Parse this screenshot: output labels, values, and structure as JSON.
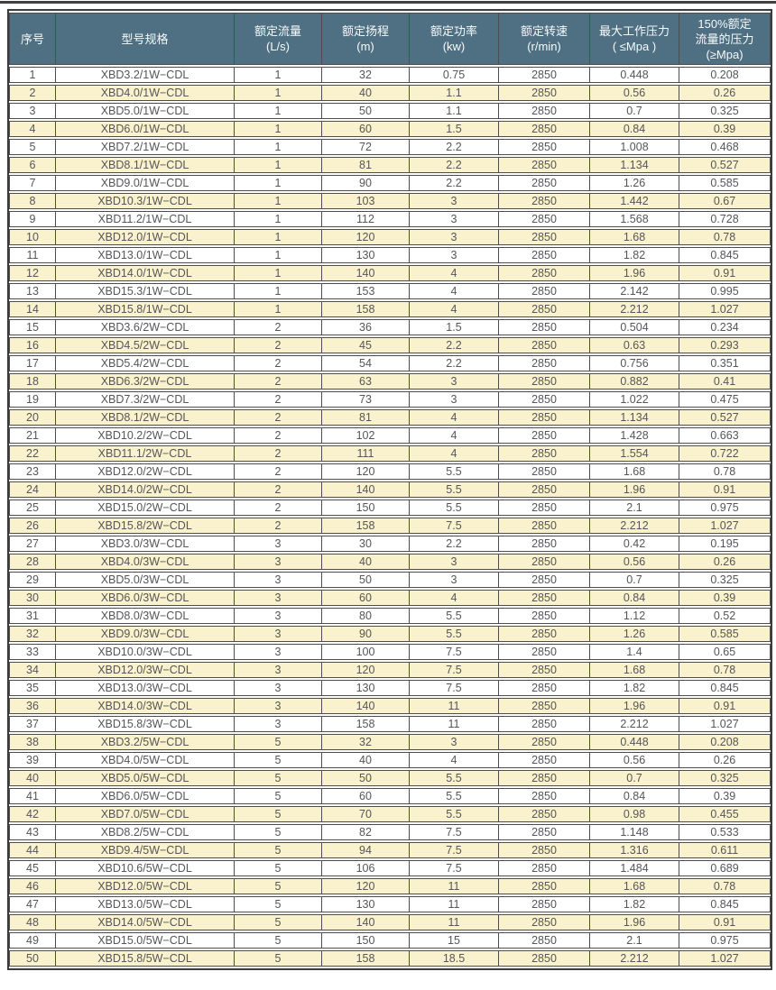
{
  "colors": {
    "header_bg": "#4e7082",
    "header_text": "#f7fafc",
    "row_alt_bg": "#f9f2cc",
    "row_bg": "#ffffff",
    "border": "#4d4d4f",
    "text": "#55555a",
    "top_rule": "#404042"
  },
  "table": {
    "columns": [
      {
        "title": "序号",
        "title2": "",
        "unit": ""
      },
      {
        "title": "型号规格",
        "title2": "",
        "unit": ""
      },
      {
        "title": "额定流量",
        "title2": "",
        "unit": "(L/s)"
      },
      {
        "title": "额定扬程",
        "title2": "",
        "unit": "(m)"
      },
      {
        "title": "额定功率",
        "title2": "",
        "unit": "(kw)"
      },
      {
        "title": "额定转速",
        "title2": "",
        "unit": "(r/min)"
      },
      {
        "title": "最大工作压力",
        "title2": "",
        "unit": "( ≤Mpa )"
      },
      {
        "title": "150%额定",
        "title2": "流量的压力",
        "unit": "(≥Mpa)"
      }
    ],
    "rows": [
      [
        "1",
        "XBD3.2/1W−CDL",
        "1",
        "32",
        "0.75",
        "2850",
        "0.448",
        "0.208"
      ],
      [
        "2",
        "XBD4.0/1W−CDL",
        "1",
        "40",
        "1.1",
        "2850",
        "0.56",
        "0.26"
      ],
      [
        "3",
        "XBD5.0/1W−CDL",
        "1",
        "50",
        "1.1",
        "2850",
        "0.7",
        "0.325"
      ],
      [
        "4",
        "XBD6.0/1W−CDL",
        "1",
        "60",
        "1.5",
        "2850",
        "0.84",
        "0.39"
      ],
      [
        "5",
        "XBD7.2/1W−CDL",
        "1",
        "72",
        "2.2",
        "2850",
        "1.008",
        "0.468"
      ],
      [
        "6",
        "XBD8.1/1W−CDL",
        "1",
        "81",
        "2.2",
        "2850",
        "1.134",
        "0.527"
      ],
      [
        "7",
        "XBD9.0/1W−CDL",
        "1",
        "90",
        "2.2",
        "2850",
        "1.26",
        "0.585"
      ],
      [
        "8",
        "XBD10.3/1W−CDL",
        "1",
        "103",
        "3",
        "2850",
        "1.442",
        "0.67"
      ],
      [
        "9",
        "XBD11.2/1W−CDL",
        "1",
        "112",
        "3",
        "2850",
        "1.568",
        "0.728"
      ],
      [
        "10",
        "XBD12.0/1W−CDL",
        "1",
        "120",
        "3",
        "2850",
        "1.68",
        "0.78"
      ],
      [
        "11",
        "XBD13.0/1W−CDL",
        "1",
        "130",
        "3",
        "2850",
        "1.82",
        "0.845"
      ],
      [
        "12",
        "XBD14.0/1W−CDL",
        "1",
        "140",
        "4",
        "2850",
        "1.96",
        "0.91"
      ],
      [
        "13",
        "XBD15.3/1W−CDL",
        "1",
        "153",
        "4",
        "2850",
        "2.142",
        "0.995"
      ],
      [
        "14",
        "XBD15.8/1W−CDL",
        "1",
        "158",
        "4",
        "2850",
        "2.212",
        "1.027"
      ],
      [
        "15",
        "XBD3.6/2W−CDL",
        "2",
        "36",
        "1.5",
        "2850",
        "0.504",
        "0.234"
      ],
      [
        "16",
        "XBD4.5/2W−CDL",
        "2",
        "45",
        "2.2",
        "2850",
        "0.63",
        "0.293"
      ],
      [
        "17",
        "XBD5.4/2W−CDL",
        "2",
        "54",
        "2.2",
        "2850",
        "0.756",
        "0.351"
      ],
      [
        "18",
        "XBD6.3/2W−CDL",
        "2",
        "63",
        "3",
        "2850",
        "0.882",
        "0.41"
      ],
      [
        "19",
        "XBD7.3/2W−CDL",
        "2",
        "73",
        "3",
        "2850",
        "1.022",
        "0.475"
      ],
      [
        "20",
        "XBD8.1/2W−CDL",
        "2",
        "81",
        "4",
        "2850",
        "1.134",
        "0.527"
      ],
      [
        "21",
        "XBD10.2/2W−CDL",
        "2",
        "102",
        "4",
        "2850",
        "1.428",
        "0.663"
      ],
      [
        "22",
        "XBD11.1/2W−CDL",
        "2",
        "111",
        "4",
        "2850",
        "1.554",
        "0.722"
      ],
      [
        "23",
        "XBD12.0/2W−CDL",
        "2",
        "120",
        "5.5",
        "2850",
        "1.68",
        "0.78"
      ],
      [
        "24",
        "XBD14.0/2W−CDL",
        "2",
        "140",
        "5.5",
        "2850",
        "1.96",
        "0.91"
      ],
      [
        "25",
        "XBD15.0/2W−CDL",
        "2",
        "150",
        "5.5",
        "2850",
        "2.1",
        "0.975"
      ],
      [
        "26",
        "XBD15.8/2W−CDL",
        "2",
        "158",
        "7.5",
        "2850",
        "2.212",
        "1.027"
      ],
      [
        "27",
        "XBD3.0/3W−CDL",
        "3",
        "30",
        "2.2",
        "2850",
        "0.42",
        "0.195"
      ],
      [
        "28",
        "XBD4.0/3W−CDL",
        "3",
        "40",
        "3",
        "2850",
        "0.56",
        "0.26"
      ],
      [
        "29",
        "XBD5.0/3W−CDL",
        "3",
        "50",
        "3",
        "2850",
        "0.7",
        "0.325"
      ],
      [
        "30",
        "XBD6.0/3W−CDL",
        "3",
        "60",
        "4",
        "2850",
        "0.84",
        "0.39"
      ],
      [
        "31",
        "XBD8.0/3W−CDL",
        "3",
        "80",
        "5.5",
        "2850",
        "1.12",
        "0.52"
      ],
      [
        "32",
        "XBD9.0/3W−CDL",
        "3",
        "90",
        "5.5",
        "2850",
        "1.26",
        "0.585"
      ],
      [
        "33",
        "XBD10.0/3W−CDL",
        "3",
        "100",
        "7.5",
        "2850",
        "1.4",
        "0.65"
      ],
      [
        "34",
        "XBD12.0/3W−CDL",
        "3",
        "120",
        "7.5",
        "2850",
        "1.68",
        "0.78"
      ],
      [
        "35",
        "XBD13.0/3W−CDL",
        "3",
        "130",
        "7.5",
        "2850",
        "1.82",
        "0.845"
      ],
      [
        "36",
        "XBD14.0/3W−CDL",
        "3",
        "140",
        "11",
        "2850",
        "1.96",
        "0.91"
      ],
      [
        "37",
        "XBD15.8/3W−CDL",
        "3",
        "158",
        "11",
        "2850",
        "2.212",
        "1.027"
      ],
      [
        "38",
        "XBD3.2/5W−CDL",
        "5",
        "32",
        "3",
        "2850",
        "0.448",
        "0.208"
      ],
      [
        "39",
        "XBD4.0/5W−CDL",
        "5",
        "40",
        "4",
        "2850",
        "0.56",
        "0.26"
      ],
      [
        "40",
        "XBD5.0/5W−CDL",
        "5",
        "50",
        "5.5",
        "2850",
        "0.7",
        "0.325"
      ],
      [
        "41",
        "XBD6.0/5W−CDL",
        "5",
        "60",
        "5.5",
        "2850",
        "0.84",
        "0.39"
      ],
      [
        "42",
        "XBD7.0/5W−CDL",
        "5",
        "70",
        "5.5",
        "2850",
        "0.98",
        "0.455"
      ],
      [
        "43",
        "XBD8.2/5W−CDL",
        "5",
        "82",
        "7.5",
        "2850",
        "1.148",
        "0.533"
      ],
      [
        "44",
        "XBD9.4/5W−CDL",
        "5",
        "94",
        "7.5",
        "2850",
        "1.316",
        "0.611"
      ],
      [
        "45",
        "XBD10.6/5W−CDL",
        "5",
        "106",
        "7.5",
        "2850",
        "1.484",
        "0.689"
      ],
      [
        "46",
        "XBD12.0/5W−CDL",
        "5",
        "120",
        "11",
        "2850",
        "1.68",
        "0.78"
      ],
      [
        "47",
        "XBD13.0/5W−CDL",
        "5",
        "130",
        "11",
        "2850",
        "1.82",
        "0.845"
      ],
      [
        "48",
        "XBD14.0/5W−CDL",
        "5",
        "140",
        "11",
        "2850",
        "1.96",
        "0.91"
      ],
      [
        "49",
        "XBD15.0/5W−CDL",
        "5",
        "150",
        "15",
        "2850",
        "2.1",
        "0.975"
      ],
      [
        "50",
        "XBD15.8/5W−CDL",
        "5",
        "158",
        "18.5",
        "2850",
        "2.212",
        "1.027"
      ]
    ]
  }
}
